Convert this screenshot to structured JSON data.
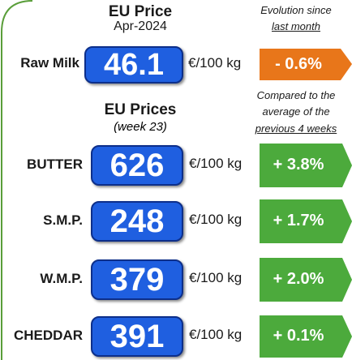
{
  "header": {
    "title": "EU Price",
    "subtitle": "Apr-2024"
  },
  "evolution_header": {
    "line1": "Evolution since",
    "line2": "last month"
  },
  "raw_milk": {
    "label": "Raw Milk",
    "price": 46.1,
    "unit": "€/100 kg",
    "change": "- 0.6%"
  },
  "prices_header": {
    "title": "EU Prices",
    "subtitle": "(week 23)"
  },
  "comparison_header": {
    "line1": "Compared to the",
    "line2": "average of the",
    "line3": "previous 4 weeks"
  },
  "rows": [
    {
      "label": "BUTTER",
      "price": 626,
      "unit": "€/100 kg",
      "change": "+ 3.8%"
    },
    {
      "label": "S.M.P.",
      "price": 248,
      "unit": "€/100 kg",
      "change": "+ 1.7%"
    },
    {
      "label": "W.M.P.",
      "price": 379,
      "unit": "€/100 kg",
      "change": "+ 2.0%"
    },
    {
      "label": "CHEDDAR",
      "price": 391,
      "unit": "€/100 kg",
      "change": "+ 0.1%"
    }
  ]
}
